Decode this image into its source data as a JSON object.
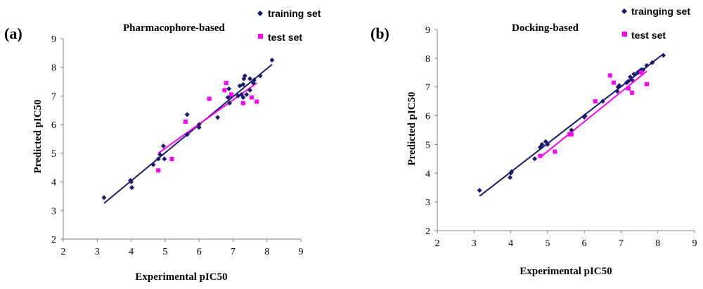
{
  "colors": {
    "training": "#1a1a6e",
    "test": "#ff00ff",
    "axis": "#808080"
  },
  "chart_data": [
    {
      "type": "scatter",
      "panel_label": "(a)",
      "title": "Pharmacophore-based",
      "xlabel": "Experimental pIC50",
      "ylabel": "Predicted pIC50",
      "xlim": [
        2,
        9
      ],
      "ylim": [
        2,
        9
      ],
      "xticks": [
        "2",
        "3",
        "4",
        "5",
        "6",
        "7",
        "8",
        "9"
      ],
      "yticks": [
        "2",
        "3",
        "4",
        "5",
        "6",
        "7",
        "8",
        "9"
      ],
      "legend": {
        "training": "training set",
        "test": "test set"
      },
      "series": [
        {
          "name": "training set",
          "marker": "diamond",
          "points": [
            [
              3.2,
              3.45
            ],
            [
              3.98,
              4.05
            ],
            [
              4.0,
              4.0
            ],
            [
              4.02,
              3.8
            ],
            [
              4.65,
              4.6
            ],
            [
              4.8,
              4.8
            ],
            [
              4.85,
              4.95
            ],
            [
              4.95,
              5.25
            ],
            [
              4.98,
              4.8
            ],
            [
              5.65,
              6.35
            ],
            [
              5.65,
              5.65
            ],
            [
              6.0,
              5.9
            ],
            [
              6.0,
              6.0
            ],
            [
              6.55,
              6.25
            ],
            [
              6.85,
              6.95
            ],
            [
              6.88,
              7.25
            ],
            [
              6.9,
              6.75
            ],
            [
              6.95,
              7.0
            ],
            [
              7.15,
              7.0
            ],
            [
              7.2,
              7.35
            ],
            [
              7.25,
              7.05
            ],
            [
              7.3,
              6.95
            ],
            [
              7.3,
              7.4
            ],
            [
              7.32,
              7.6
            ],
            [
              7.35,
              7.7
            ],
            [
              7.4,
              7.05
            ],
            [
              7.5,
              7.2
            ],
            [
              7.5,
              7.6
            ],
            [
              7.6,
              7.45
            ],
            [
              7.62,
              7.55
            ],
            [
              7.8,
              7.7
            ],
            [
              8.15,
              8.25
            ]
          ]
        },
        {
          "name": "test set",
          "marker": "square",
          "points": [
            [
              4.8,
              4.4
            ],
            [
              5.2,
              4.8
            ],
            [
              5.6,
              6.1
            ],
            [
              6.3,
              6.9
            ],
            [
              6.75,
              7.2
            ],
            [
              6.8,
              7.45
            ],
            [
              6.95,
              7.05
            ],
            [
              7.3,
              6.75
            ],
            [
              7.55,
              6.95
            ],
            [
              7.7,
              6.8
            ]
          ]
        }
      ],
      "fit_lines": [
        {
          "name": "training fit",
          "from": [
            3.2,
            3.25
          ],
          "to": [
            8.15,
            8.1
          ]
        },
        {
          "name": "test fit",
          "from": [
            4.8,
            5.0
          ],
          "to": [
            7.7,
            7.45
          ]
        }
      ]
    },
    {
      "type": "scatter",
      "panel_label": "(b)",
      "title": "Docking-based",
      "xlabel": "Experimental pIC50",
      "ylabel": "Predicted pIC50",
      "xlim": [
        2,
        9
      ],
      "ylim": [
        2,
        9
      ],
      "xticks": [
        "2",
        "3",
        "4",
        "5",
        "6",
        "7",
        "8",
        "9"
      ],
      "yticks": [
        "2",
        "3",
        "4",
        "5",
        "6",
        "7",
        "8",
        "9"
      ],
      "legend": {
        "training": "trainging set",
        "test": "test set"
      },
      "series": [
        {
          "name": "trainging set",
          "marker": "diamond",
          "points": [
            [
              3.15,
              3.4
            ],
            [
              3.98,
              3.85
            ],
            [
              4.0,
              4.0
            ],
            [
              4.02,
              4.05
            ],
            [
              4.65,
              4.5
            ],
            [
              4.8,
              4.9
            ],
            [
              4.85,
              5.0
            ],
            [
              4.95,
              5.1
            ],
            [
              5.0,
              5.0
            ],
            [
              5.65,
              5.5
            ],
            [
              6.0,
              5.95
            ],
            [
              6.02,
              6.0
            ],
            [
              6.5,
              6.5
            ],
            [
              6.9,
              6.85
            ],
            [
              6.92,
              7.0
            ],
            [
              6.95,
              7.05
            ],
            [
              7.15,
              7.15
            ],
            [
              7.2,
              7.2
            ],
            [
              7.25,
              7.35
            ],
            [
              7.3,
              7.25
            ],
            [
              7.35,
              7.45
            ],
            [
              7.45,
              7.5
            ],
            [
              7.5,
              7.55
            ],
            [
              7.55,
              7.6
            ],
            [
              7.6,
              7.6
            ],
            [
              7.7,
              7.75
            ],
            [
              7.85,
              7.85
            ],
            [
              8.15,
              8.1
            ]
          ]
        },
        {
          "name": "test set",
          "marker": "square",
          "points": [
            [
              4.8,
              4.6
            ],
            [
              5.2,
              4.75
            ],
            [
              5.6,
              5.35
            ],
            [
              5.65,
              5.35
            ],
            [
              6.3,
              6.5
            ],
            [
              6.7,
              7.4
            ],
            [
              6.8,
              7.15
            ],
            [
              7.2,
              6.95
            ],
            [
              7.3,
              6.8
            ],
            [
              7.55,
              7.5
            ],
            [
              7.7,
              7.1
            ]
          ]
        }
      ],
      "fit_lines": [
        {
          "name": "training fit",
          "from": [
            3.15,
            3.2
          ],
          "to": [
            8.15,
            8.15
          ]
        },
        {
          "name": "test fit",
          "from": [
            4.8,
            4.55
          ],
          "to": [
            7.7,
            7.55
          ]
        }
      ]
    }
  ]
}
